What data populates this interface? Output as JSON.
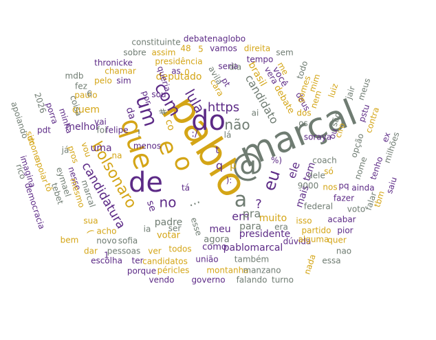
{
  "colors": {
    "gold": "#d4a516",
    "purple": "#5c2a86",
    "gray": "#6f7c72",
    "dark_gray": "#77817a"
  },
  "words": [
    {
      "text": "marçal",
      "color": "gray"
    },
    {
      "text": "pablo",
      "color": "gold"
    },
    {
      "text": "@",
      "color": "gray"
    },
    {
      "text": "de",
      "color": "purple"
    },
    {
      "text": "do",
      "color": "purple"
    },
    {
      "text": "que",
      "color": "gold"
    },
    {
      "text": "o",
      "color": "gold"
    },
    {
      "text": "a",
      "color": "gray"
    },
    {
      "text": "e",
      "color": "gold"
    },
    {
      "text": "um",
      "color": "purple"
    },
    {
      "text": "com",
      "color": "purple"
    },
    {
      "text": "não",
      "color": "gray"
    },
    {
      "text": "eu",
      "color": "purple"
    },
    {
      "text": "bolsonaro",
      "color": "gold"
    },
    {
      "text": "candidatura",
      "color": "purple"
    },
    {
      "text": "lula",
      "color": "purple"
    },
    {
      "text": "no",
      "color": "purple"
    },
    {
      "text": "em",
      "color": "purple"
    },
    {
      "text": "https",
      "color": "purple"
    },
    {
      "text": "ele",
      "color": "purple"
    },
    {
      "text": "mais",
      "color": "purple"
    },
    {
      "text": "tem",
      "color": "purple"
    },
    {
      "text": "pra",
      "color": "gray"
    },
    {
      "text": "muito",
      "color": "gold"
    },
    {
      "text": "presidente",
      "color": "purple"
    },
    {
      "text": "para",
      "color": "gray"
    },
    {
      "text": "pablomarcal",
      "color": "purple"
    },
    {
      "text": "candidato",
      "color": "gray"
    },
    {
      "text": "brasil",
      "color": "gold"
    },
    {
      "text": "você",
      "color": "purple"
    },
    {
      "text": "debate",
      "color": "gold"
    },
    {
      "text": "deputado",
      "color": "gold"
    },
    {
      "text": "presidência",
      "color": "gold"
    },
    {
      "text": "padre",
      "color": "gray"
    },
    {
      "text": "meu",
      "color": "purple"
    },
    {
      "text": "agora",
      "color": "gray"
    },
    {
      "text": "como",
      "color": "purple"
    },
    {
      "text": "votar",
      "color": "gold"
    },
    {
      "text": "uma",
      "color": "purple"
    },
    {
      "text": "melhor",
      "color": "purple"
    },
    {
      "text": "quem",
      "color": "gold"
    },
    {
      "text": "felipe",
      "color": "purple"
    },
    {
      "text": "da",
      "color": "purple"
    },
    {
      "text": "se",
      "color": "purple"
    },
    {
      "text": "na",
      "color": "gold"
    },
    {
      "text": "por",
      "color": "purple"
    },
    {
      "text": "queria",
      "color": "purple"
    },
    {
      "text": "cara",
      "color": "gold"
    },
    {
      "text": "avila",
      "color": "gray"
    },
    {
      "text": "pt",
      "color": "purple"
    },
    {
      "text": "me",
      "color": "gold"
    },
    {
      "text": "vera",
      "color": "purple"
    },
    {
      "text": "deus",
      "color": "purple"
    },
    {
      "text": "os",
      "color": "gray"
    },
    {
      "text": "dos",
      "color": "gold"
    },
    {
      "text": "dele",
      "color": "gray"
    },
    {
      "text": "coach",
      "color": "gray"
    },
    {
      "text": "federal",
      "color": "gray"
    },
    {
      "text": "isso",
      "color": "gold"
    },
    {
      "text": "partido",
      "color": "gold"
    },
    {
      "text": "pior",
      "color": "purple"
    },
    {
      "text": "sofia",
      "color": "gray"
    },
    {
      "text": "novo",
      "color": "gray"
    },
    {
      "text": "ser",
      "color": "gray"
    },
    {
      "text": "esse",
      "color": "gray"
    },
    {
      "text": "tá",
      "color": "purple"
    },
    {
      "text": "debatenaglobo",
      "color": "purple"
    },
    {
      "text": "constituinte",
      "color": "gray"
    },
    {
      "text": "vamos",
      "color": "purple"
    },
    {
      "text": "direita",
      "color": "gold"
    },
    {
      "text": "sem",
      "color": "gray"
    },
    {
      "text": "seria",
      "color": "purple"
    },
    {
      "text": "tempo",
      "color": "purple"
    },
    {
      "text": "sobre",
      "color": "gray"
    },
    {
      "text": "assim",
      "color": "gold"
    },
    {
      "text": "48",
      "color": "gold"
    },
    {
      "text": "thronicke",
      "color": "purple"
    },
    {
      "text": "chamar",
      "color": "gold"
    },
    {
      "text": "as",
      "color": "purple"
    },
    {
      "text": "dia",
      "color": "gray"
    },
    {
      "text": "sim",
      "color": "purple"
    },
    {
      "text": "pelo",
      "color": "gold"
    },
    {
      "text": "mdb",
      "color": "gray"
    },
    {
      "text": "fez",
      "color": "gray"
    },
    {
      "text": "paulo",
      "color": "gold"
    },
    {
      "text": "coisa",
      "color": "gray"
    },
    {
      "text": "porra",
      "color": "purple"
    },
    {
      "text": "2026",
      "color": "gray"
    },
    {
      "text": "minha",
      "color": "purple"
    },
    {
      "text": "pdt",
      "color": "purple"
    },
    {
      "text": "apoiando",
      "color": "gray"
    },
    {
      "text": "dc",
      "color": "gold"
    },
    {
      "text": "simone",
      "color": "gold"
    },
    {
      "text": "já",
      "color": "gray"
    },
    {
      "text": "vou",
      "color": "gold"
    },
    {
      "text": "vai",
      "color": "purple"
    },
    {
      "text": "foi",
      "color": "gray"
    },
    {
      "text": "pros",
      "color": "gold"
    },
    {
      "text": "nesse",
      "color": "purple"
    },
    {
      "text": "imagina",
      "color": "purple"
    },
    {
      "text": "apoiar",
      "color": "gold"
    },
    {
      "text": "tô",
      "color": "gold"
    },
    {
      "text": "rico",
      "color": "gray"
    },
    {
      "text": "democracia",
      "color": "purple"
    },
    {
      "text": "eymael",
      "color": "gray"
    },
    {
      "text": "tebet",
      "color": "gray"
    },
    {
      "text": "mesmo",
      "color": "gold"
    },
    {
      "text": "marcal",
      "color": "gray"
    },
    {
      "text": "bem",
      "color": "gold"
    },
    {
      "text": "acho",
      "color": "gold"
    },
    {
      "text": "sua",
      "color": "gold"
    },
    {
      "text": "dar",
      "color": "gold"
    },
    {
      "text": "pessoas",
      "color": "gray"
    },
    {
      "text": "escolha",
      "color": "purple"
    },
    {
      "text": "ver",
      "color": "gold"
    },
    {
      "text": "todos",
      "color": "gold"
    },
    {
      "text": "candidatos",
      "color": "gold"
    },
    {
      "text": "ter",
      "color": "purple"
    },
    {
      "text": "porque",
      "color": "purple"
    },
    {
      "text": "péricles",
      "color": "gold"
    },
    {
      "text": "montanha",
      "color": "gold"
    },
    {
      "text": "vendo",
      "color": "purple"
    },
    {
      "text": "união",
      "color": "purple"
    },
    {
      "text": "também",
      "color": "gray"
    },
    {
      "text": "manzano",
      "color": "gray"
    },
    {
      "text": "governo",
      "color": "purple"
    },
    {
      "text": "falando",
      "color": "gray"
    },
    {
      "text": "turno",
      "color": "gray"
    },
    {
      "text": "dúvida",
      "color": "purple"
    },
    {
      "text": "quer",
      "color": "gold"
    },
    {
      "text": "essa",
      "color": "gray"
    },
    {
      "text": "alguma",
      "color": "gold"
    },
    {
      "text": "nao",
      "color": "gray"
    },
    {
      "text": "acabar",
      "color": "purple"
    },
    {
      "text": "fazer",
      "color": "purple"
    },
    {
      "text": "voto",
      "color": "gray"
    },
    {
      "text": "pq",
      "color": "purple"
    },
    {
      "text": "nos",
      "color": "gold"
    },
    {
      "text": "9000",
      "color": "gray"
    },
    {
      "text": "era",
      "color": "gray"
    },
    {
      "text": "só",
      "color": "gold"
    },
    {
      "text": "ciro",
      "color": "gold"
    },
    {
      "text": "soraya",
      "color": "purple"
    },
    {
      "text": "ou",
      "color": "purple"
    },
    {
      "text": "são",
      "color": "gray"
    },
    {
      "text": "nem",
      "color": "gold"
    },
    {
      "text": "gomes",
      "color": "gold"
    },
    {
      "text": "mim",
      "color": "gold"
    },
    {
      "text": "todo",
      "color": "gray"
    },
    {
      "text": "luiz",
      "color": "gold"
    },
    {
      "text": "jair",
      "color": "gray"
    },
    {
      "text": "meus",
      "color": "gray"
    },
    {
      "text": "pstu",
      "color": "purple"
    },
    {
      "text": "contra",
      "color": "gold"
    },
    {
      "text": "ex",
      "color": "purple"
    },
    {
      "text": "milhões",
      "color": "gray"
    },
    {
      "text": "opção",
      "color": "gray"
    },
    {
      "text": "tenho",
      "color": "purple"
    },
    {
      "text": "nome",
      "color": "gray"
    },
    {
      "text": "saiu",
      "color": "purple"
    },
    {
      "text": "ainda",
      "color": "purple"
    },
    {
      "text": "tbm",
      "color": "gold"
    },
    {
      "text": "falar",
      "color": "gray"
    },
    {
      "text": "nada",
      "color": "gold"
    },
    {
      "text": "menos",
      "color": "purple"
    },
    {
      "text": "sou",
      "color": "purple"
    },
    {
      "text": "q",
      "color": "purple"
    },
    {
      "text": "p",
      "color": "gold"
    },
    {
      "text": "t",
      "color": "purple"
    },
    {
      "text": "?",
      "color": "purple"
    },
    {
      "text": "!",
      "color": "gray"
    },
    {
      "text": "%)",
      "color": "purple"
    },
    {
      "text": "0",
      "color": "gold"
    },
    {
      "text": "1",
      "color": "purple"
    },
    {
      "text": "5",
      "color": "gold"
    },
    {
      "text": "6",
      "color": "gray"
    },
    {
      "text": "ai",
      "color": "gray"
    },
    {
      "text": "lá",
      "color": "gray"
    },
    {
      "text": "ia",
      "color": "gray"
    },
    {
      "text": "co",
      "color": "gold"
    },
    {
      "text": "#",
      "color": "gray"
    },
    {
      "text": "):",
      "color": "purple"
    },
    {
      "text": ":/",
      "color": "purple"
    },
    {
      "text": "...",
      "color": "gray"
    },
    {
      "text": "(",
      "color": "gold"
    },
    {
      "text": "é",
      "color": "gray"
    },
    {
      "text": "pl",
      "color": "gold"
    }
  ]
}
